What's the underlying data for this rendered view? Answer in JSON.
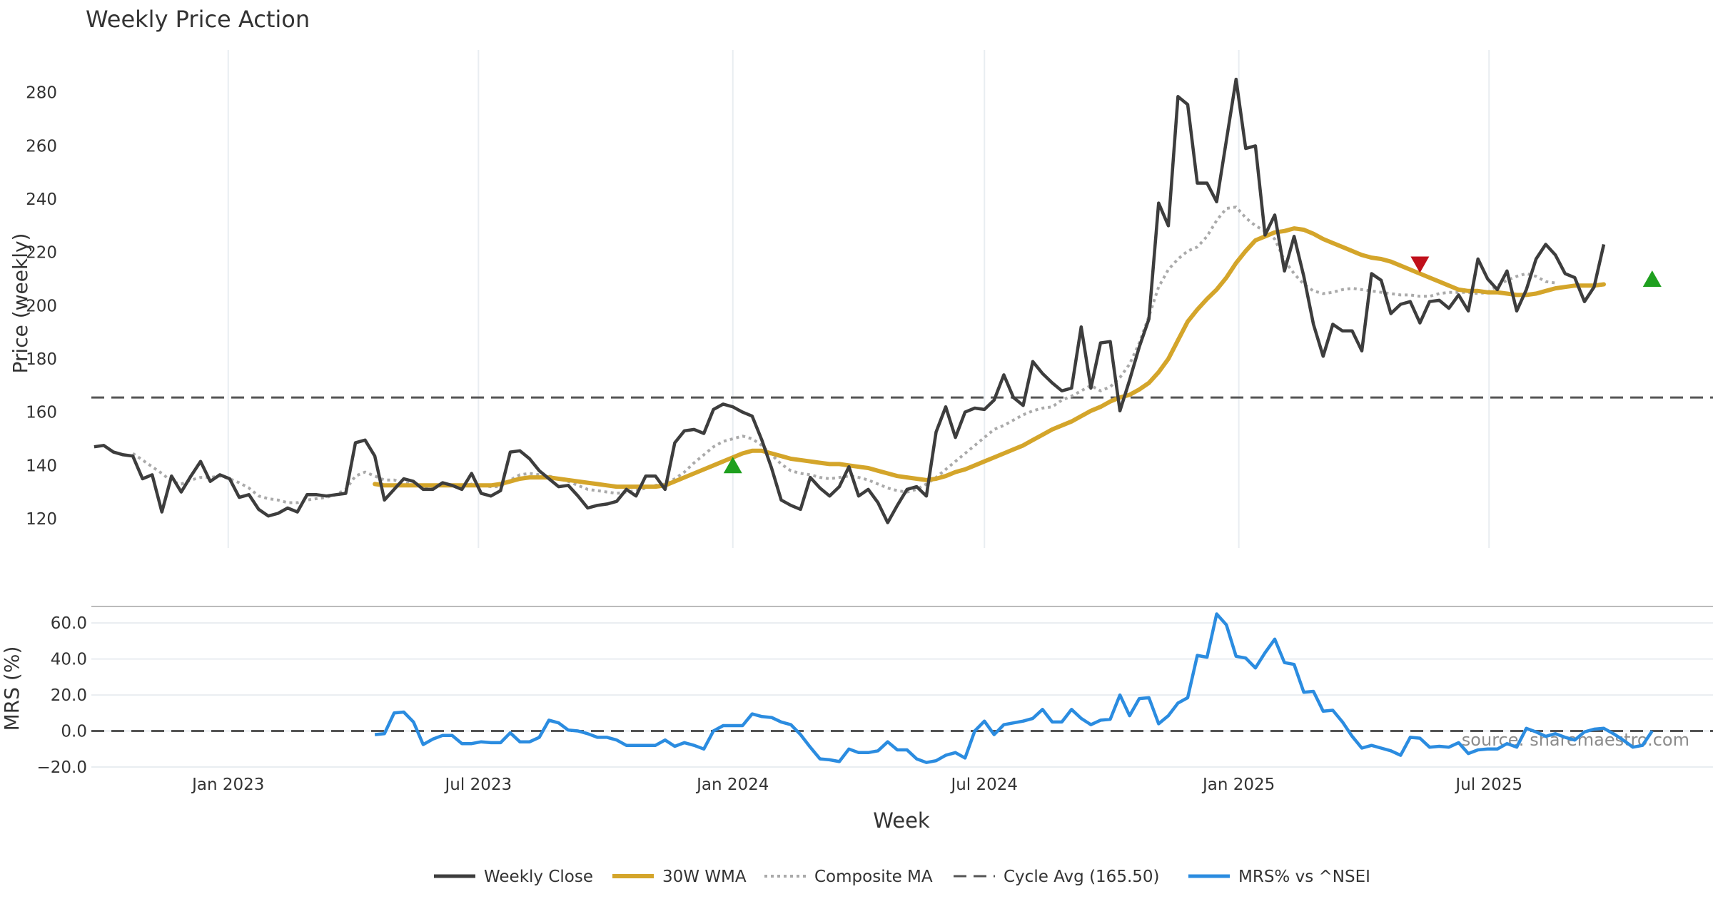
{
  "colors": {
    "close": "#3d3d3d",
    "wma": "#d4a52a",
    "composite": "#aaaaaa",
    "cycle": "#555555",
    "mrs": "#2b8ce0",
    "buy": "#1fa01f",
    "sell": "#c0101b",
    "grid": "#e9edf1",
    "text": "#333333"
  },
  "chart_data": [
    {
      "type": "line",
      "title": "Weekly Price Action",
      "xlabel": "Week",
      "ylabel": "Price (weekly)",
      "ylim": [
        109,
        296
      ],
      "yticks": [
        120,
        140,
        160,
        180,
        200,
        220,
        240,
        260,
        280
      ],
      "x_start": "2022-09-26",
      "x_step_days": 7,
      "xlim": [
        "2022-09-24",
        "2025-12-10"
      ],
      "xticks": [
        {
          "date": "2023-01-01",
          "label": "Jan 2023"
        },
        {
          "date": "2023-07-01",
          "label": "Jul 2023"
        },
        {
          "date": "2024-01-01",
          "label": "Jan 2024"
        },
        {
          "date": "2024-07-01",
          "label": "Jul 2024"
        },
        {
          "date": "2025-01-01",
          "label": "Jan 2025"
        },
        {
          "date": "2025-07-01",
          "label": "Jul 2025"
        }
      ],
      "series": [
        {
          "name": "Weekly Close",
          "style": "solid",
          "values": [
            147,
            147.5,
            145,
            144,
            143.5,
            135,
            136.5,
            122.5,
            136,
            130,
            136,
            141.5,
            134,
            136.5,
            135,
            128,
            129,
            123.5,
            121,
            122,
            124,
            122.5,
            129,
            129,
            128.5,
            129,
            129.5,
            148.5,
            149.5,
            143.5,
            127,
            131,
            135,
            134,
            131,
            131,
            133.5,
            132.5,
            131,
            137,
            129.5,
            128.5,
            130.5,
            145,
            145.5,
            142.5,
            138,
            135,
            132,
            132.5,
            128.5,
            124,
            125,
            125.5,
            126.5,
            131,
            128.5,
            136,
            136,
            131,
            148.5,
            153,
            153.5,
            152,
            161,
            163,
            162,
            160,
            158.5,
            149.5,
            139,
            127,
            125,
            123.5,
            135.5,
            131.5,
            128.5,
            132,
            139.5,
            128.5,
            131,
            126,
            118.5,
            125,
            131,
            132,
            128.5,
            152.5,
            162,
            150.5,
            160,
            161.5,
            161,
            164.5,
            174,
            165.5,
            162.5,
            179,
            174.5,
            171,
            168,
            169,
            192,
            169,
            186,
            186.5,
            160.5,
            172,
            184.5,
            195,
            238.5,
            230,
            278.5,
            275.5,
            246,
            246,
            239,
            262,
            285,
            259,
            260,
            226.5,
            234,
            213,
            226,
            211,
            193,
            181,
            193,
            190.5,
            190.5,
            183,
            212,
            209.5,
            197,
            200.5,
            201.5,
            193.5,
            201.5,
            202,
            199,
            204,
            198,
            217.5,
            210,
            206,
            213,
            198,
            206,
            217.5,
            223,
            219,
            212,
            210.5,
            201.5,
            207,
            223
          ]
        },
        {
          "name": "30W WMA",
          "style": "solid",
          "values": [
            null,
            null,
            null,
            null,
            null,
            null,
            null,
            null,
            null,
            null,
            null,
            null,
            null,
            null,
            null,
            null,
            null,
            null,
            null,
            null,
            null,
            null,
            null,
            null,
            null,
            null,
            null,
            null,
            null,
            133,
            132.5,
            132.5,
            132.5,
            132.5,
            132.5,
            132.5,
            132.5,
            132.5,
            132.5,
            132.5,
            132.5,
            132.5,
            133,
            134,
            135,
            135.5,
            135.5,
            135.5,
            135,
            134.5,
            134,
            133.5,
            133,
            132.5,
            132,
            132,
            132,
            132,
            132,
            132.5,
            134,
            135.5,
            137,
            138.5,
            140,
            141.5,
            143,
            144.5,
            145.5,
            145.5,
            144.5,
            143.5,
            142.5,
            142,
            141.5,
            141,
            140.5,
            140.5,
            140,
            139.5,
            139,
            138,
            137,
            136,
            135.5,
            135,
            134.5,
            135,
            136,
            137.5,
            138.5,
            140,
            141.5,
            143,
            144.5,
            146,
            147.5,
            149.5,
            151.5,
            153.5,
            155,
            156.5,
            158.5,
            160.5,
            162,
            164,
            165.5,
            166.5,
            168.5,
            171,
            175,
            180,
            187,
            194,
            198.5,
            202.5,
            206,
            210.5,
            216,
            220.5,
            224.5,
            226,
            227.5,
            228,
            229,
            228.5,
            227,
            225,
            223.5,
            222,
            220.5,
            219,
            218,
            217.5,
            216.5,
            215,
            213.5,
            212,
            210.5,
            209,
            207.5,
            206,
            205.5,
            205.5,
            205,
            205,
            204.5,
            204,
            204,
            204.5,
            205.5,
            206.5,
            207,
            207.5,
            207.5,
            207.5,
            208
          ]
        },
        {
          "name": "Composite MA",
          "style": "dotted",
          "values": [
            null,
            null,
            null,
            null,
            144.5,
            142,
            139.5,
            137,
            134,
            133,
            134.5,
            135.5,
            135.5,
            136,
            135,
            133.5,
            131.5,
            128.5,
            127.5,
            127,
            126,
            126,
            127,
            127.5,
            128,
            129,
            131,
            136,
            137.5,
            136,
            134.5,
            134.5,
            133.5,
            133,
            132,
            132,
            132.5,
            132.5,
            132,
            133,
            132.5,
            132,
            132,
            134.5,
            136.5,
            137,
            136.5,
            136,
            135,
            134,
            132.5,
            131,
            130.5,
            130,
            129.5,
            130,
            130.5,
            131.5,
            132.5,
            133,
            135,
            137.5,
            141,
            144,
            147,
            149,
            150,
            151,
            150,
            147.5,
            144,
            140.5,
            138,
            137,
            136.5,
            135.5,
            135,
            135.5,
            136,
            135.5,
            134.5,
            133,
            131.5,
            130.5,
            130,
            131,
            133,
            135.5,
            138.5,
            141.5,
            144.5,
            147.5,
            150.5,
            153.5,
            155,
            157,
            159,
            160.5,
            161.5,
            162,
            164.5,
            166,
            168,
            170,
            168,
            169.5,
            173,
            178,
            186,
            196,
            207,
            213.5,
            217.5,
            220.5,
            222,
            226,
            232,
            236.5,
            237,
            233,
            230,
            228,
            225,
            217,
            212,
            208,
            205.5,
            204.5,
            205,
            206,
            206.5,
            206,
            205.5,
            205,
            204.5,
            204,
            204,
            203.5,
            203.5,
            204.5,
            205,
            205,
            205,
            204.5,
            205,
            207.5,
            209.5,
            211,
            212,
            211,
            209,
            208.5
          ]
        },
        {
          "name": "Cycle Avg (165.50)",
          "style": "dashed",
          "level": 165.5
        }
      ],
      "signals": [
        {
          "type": "buy",
          "week": 66,
          "price": 140
        },
        {
          "type": "sell",
          "week": 137,
          "price": 215.5
        },
        {
          "type": "buy",
          "week": 161,
          "price": 210
        }
      ]
    },
    {
      "type": "line",
      "xlabel": "Week",
      "ylabel": "MRS (%)",
      "ylim": [
        -20,
        66
      ],
      "yticks": [
        -20,
        0,
        20,
        40,
        60
      ],
      "ytick_labels": [
        "−20.0",
        "0.0",
        "20.0",
        "40.0",
        "60.0"
      ],
      "baseline": 0,
      "annotation": "source: sharemaestro.com",
      "series": [
        {
          "name": "MRS% vs ^NSEI",
          "style": "solid",
          "values": [
            null,
            null,
            null,
            null,
            null,
            null,
            null,
            null,
            null,
            null,
            null,
            null,
            null,
            null,
            null,
            null,
            null,
            null,
            null,
            null,
            null,
            null,
            null,
            null,
            null,
            null,
            null,
            null,
            null,
            -2,
            -1.5,
            10,
            10.5,
            5,
            -7.5,
            -4.5,
            -2.5,
            -2.5,
            -7,
            -7,
            -6,
            -6.5,
            -6.5,
            -1,
            -6,
            -6,
            -3.5,
            6,
            4.5,
            0.5,
            0,
            -1.5,
            -3.5,
            -3.5,
            -5,
            -8,
            -8,
            -8,
            -8,
            -5,
            -8.5,
            -6.5,
            -8,
            -10,
            0,
            3,
            3,
            3,
            9.5,
            8,
            7.5,
            5,
            3.5,
            -2,
            -9,
            -15.5,
            -16,
            -17,
            -10,
            -12,
            -12,
            -11,
            -6,
            -10.5,
            -10.5,
            -15.5,
            -17.5,
            -16.5,
            -13.5,
            -12,
            -15,
            0,
            5.5,
            -2,
            3.5,
            4.5,
            5.5,
            7,
            12,
            5,
            5,
            12,
            7,
            3.5,
            6,
            6.5,
            20,
            8.5,
            18,
            18.5,
            4,
            8.5,
            15.5,
            18.5,
            42,
            41,
            65,
            59,
            41.5,
            40.5,
            35,
            43.5,
            51,
            38,
            37,
            21.5,
            22,
            11,
            11.5,
            5,
            -3,
            -9.5,
            -8,
            -9.5,
            -11,
            -13.5,
            -3.5,
            -4,
            -9,
            -8.5,
            -9,
            -6.5,
            -12.5,
            -10.5,
            -10,
            -10,
            -7,
            -9,
            1.5,
            -0.5,
            -3,
            -1.5,
            -3.5,
            -5,
            -0.5,
            1,
            1.5,
            -1.5,
            -5,
            -9,
            -8,
            0
          ]
        }
      ]
    }
  ]
}
